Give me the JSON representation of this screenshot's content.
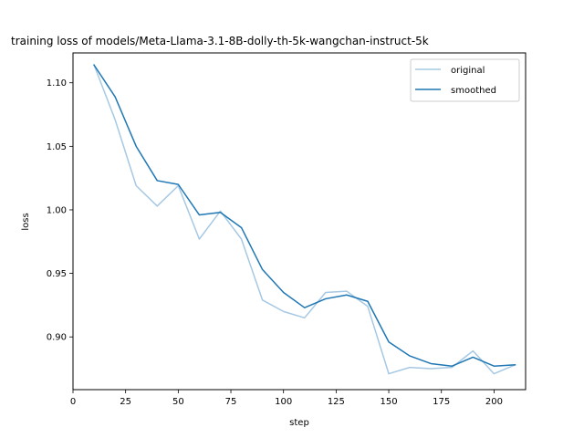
{
  "chart_data": {
    "type": "line",
    "title": "training loss of models/Meta-Llama-3.1-8B-dolly-th-5k-wangchan-instruct-5k",
    "xlabel": "step",
    "ylabel": "loss",
    "xlim": [
      0,
      215
    ],
    "ylim": [
      0.8585,
      1.1235
    ],
    "xticks": [
      0,
      25,
      50,
      75,
      100,
      125,
      150,
      175,
      200
    ],
    "yticks": [
      0.9,
      0.95,
      1.0,
      1.05,
      1.1
    ],
    "ytick_labels": [
      "0.90",
      "0.95",
      "1.00",
      "1.05",
      "1.10"
    ],
    "grid": false,
    "legend_position": "top-right",
    "x": [
      10,
      20,
      30,
      40,
      50,
      60,
      70,
      80,
      90,
      100,
      110,
      120,
      130,
      140,
      150,
      160,
      170,
      180,
      190,
      200,
      210
    ],
    "series": [
      {
        "name": "original",
        "color": "#a6c8e3",
        "values": [
          1.114,
          1.071,
          1.019,
          1.003,
          1.019,
          0.977,
          0.999,
          0.977,
          0.929,
          0.92,
          0.915,
          0.935,
          0.936,
          0.924,
          0.871,
          0.876,
          0.875,
          0.876,
          0.889,
          0.871,
          0.878
        ]
      },
      {
        "name": "smoothed",
        "color": "#1f77b4",
        "values": [
          1.114,
          1.089,
          1.05,
          1.023,
          1.02,
          0.996,
          0.998,
          0.986,
          0.953,
          0.935,
          0.923,
          0.93,
          0.933,
          0.928,
          0.896,
          0.885,
          0.879,
          0.877,
          0.884,
          0.877,
          0.878
        ]
      }
    ]
  }
}
